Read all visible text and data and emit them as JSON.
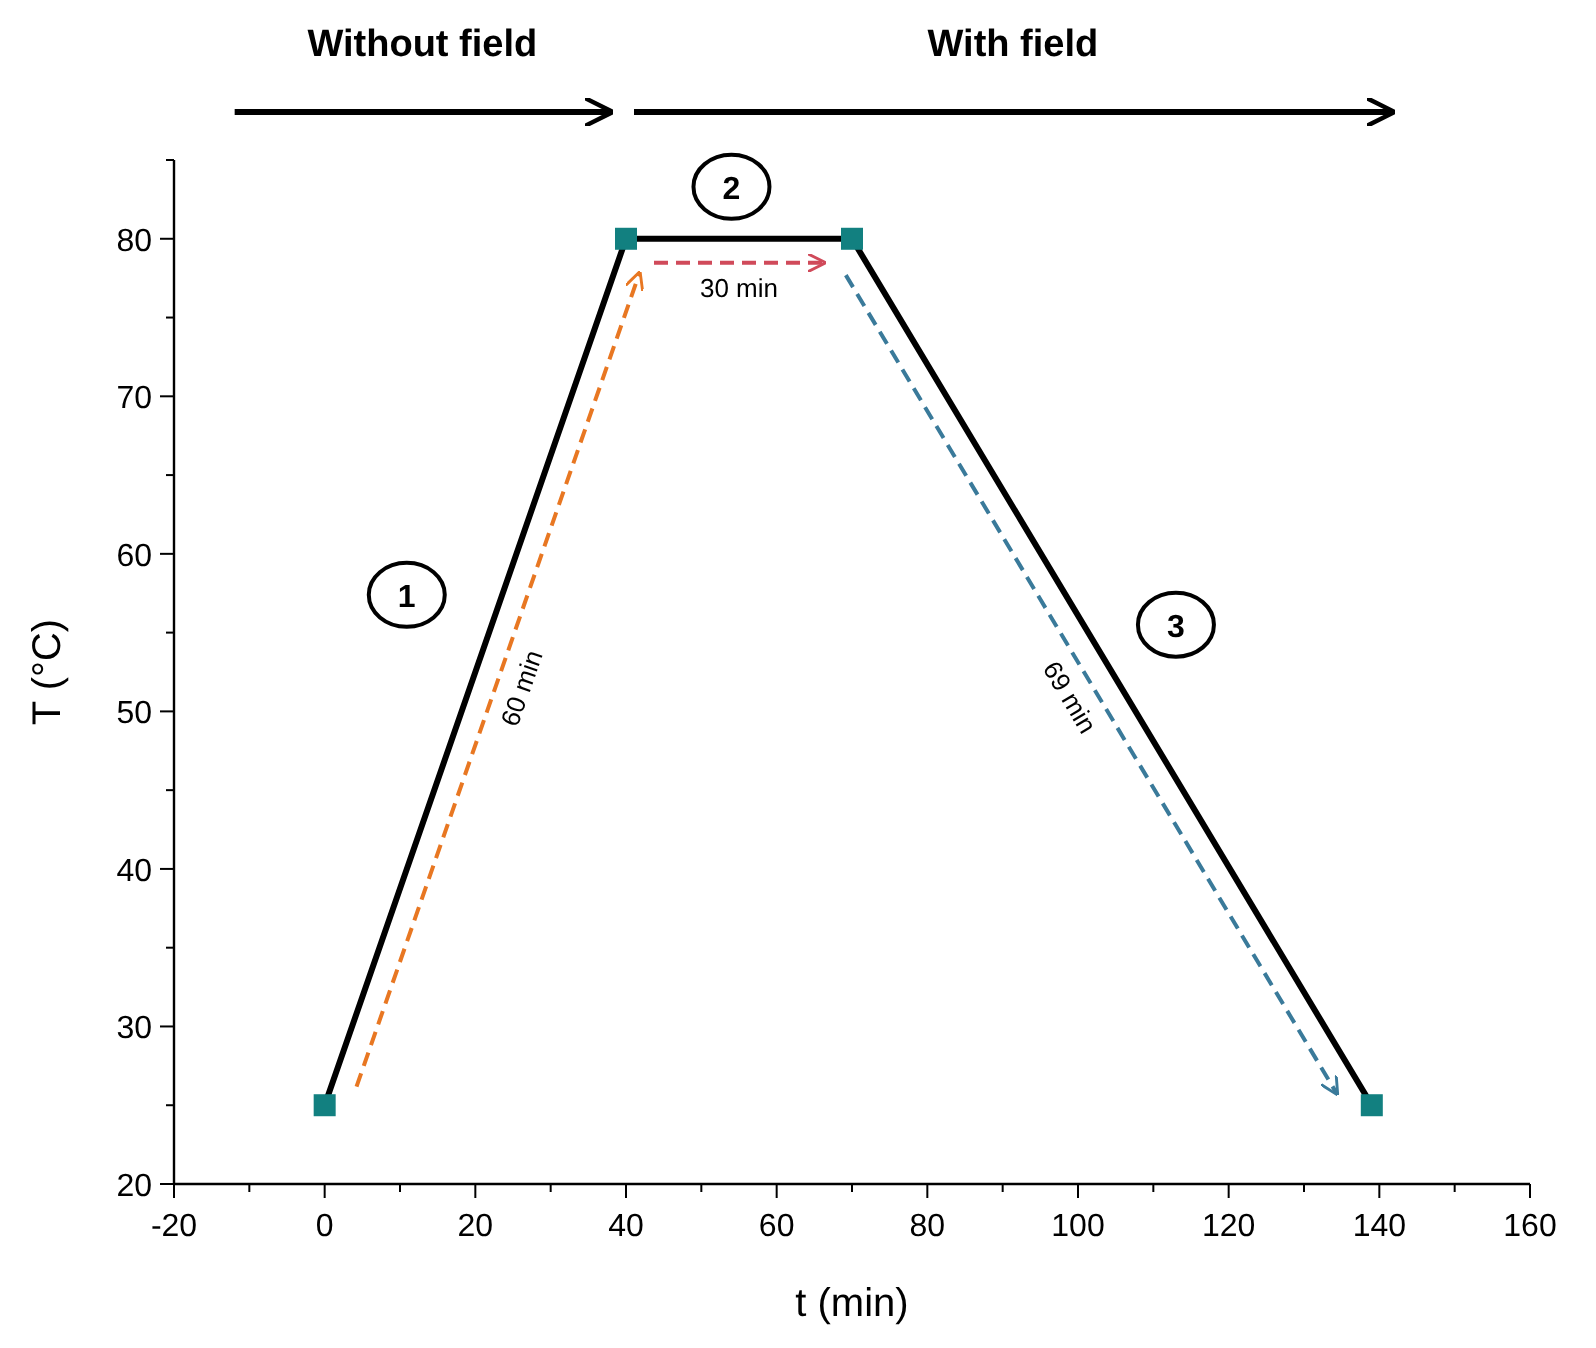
{
  "chart_data": {
    "type": "line",
    "xlabel": "t (min)",
    "ylabel": "T (°C)",
    "x": [
      0,
      40,
      70,
      139
    ],
    "series": [
      {
        "color": "#000000",
        "values": [
          25,
          80,
          80,
          25
        ],
        "marker": "square"
      }
    ],
    "xlim": [
      -20,
      160
    ],
    "xticks": [
      -20,
      {
        "value": -10,
        "label": null
      },
      0,
      {
        "value": 10,
        "label": null
      },
      20,
      {
        "value": 30,
        "label": null
      },
      40,
      {
        "value": 50,
        "label": null
      },
      60,
      {
        "value": 70,
        "label": null
      },
      80,
      {
        "value": 90,
        "label": null
      },
      100,
      {
        "value": 110,
        "label": null
      },
      120,
      {
        "value": 130,
        "label": null
      },
      140,
      {
        "value": 150,
        "label": null
      },
      160
    ],
    "ylim": [
      20,
      85
    ],
    "yticks": [
      20,
      {
        "value": 25,
        "label": null
      },
      30,
      {
        "value": 35,
        "label": null
      },
      40,
      {
        "value": 45,
        "label": null
      },
      50,
      {
        "value": 55,
        "label": null
      },
      60,
      {
        "value": 65,
        "label": null
      },
      70,
      {
        "value": 75,
        "label": null
      },
      80,
      {
        "value": 85,
        "label": null
      }
    ],
    "grid": false,
    "line_style": "solid",
    "annotations": [
      "Without field",
      "With field",
      {
        "text": "1",
        "x": 10.9,
        "y": 57.4
      },
      {
        "text": "2",
        "x": 54,
        "y": 83.3
      },
      {
        "text": "3",
        "x": 113,
        "y": 55.5
      },
      "60 min",
      "30 min",
      "69 min"
    ]
  }
}
